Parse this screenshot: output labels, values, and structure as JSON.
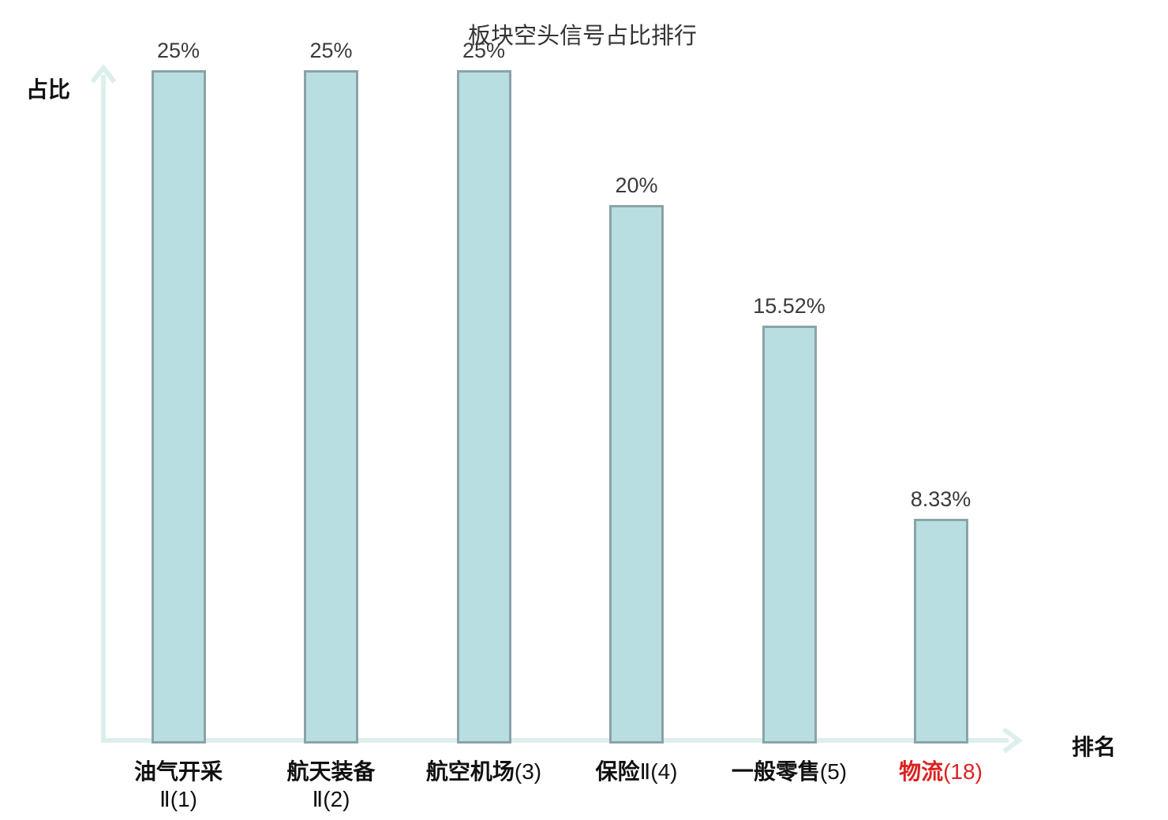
{
  "title": "板块空头信号占比排行",
  "colors": {
    "bar_fill": "#b9dee1",
    "bar_border": "#8ba3a7",
    "axis": "#dcefec",
    "value_text": "#3a3a3a",
    "label_text": "#111111",
    "title_text": "#333333",
    "highlight": "#dd2222"
  },
  "chart_data": {
    "type": "bar",
    "title": "板块空头信号占比排行",
    "xlabel": "排名",
    "ylabel": "占比",
    "ylim": [
      0,
      25
    ],
    "grid": false,
    "legend": null,
    "categories": [
      "油气开采Ⅱ(1)",
      "航天装备Ⅱ(2)",
      "航空机场(3)",
      "保险Ⅱ(4)",
      "一般零售(5)",
      "物流(18)"
    ],
    "values": [
      25,
      25,
      25,
      20,
      15.52,
      8.33
    ],
    "value_labels": [
      "25%",
      "25%",
      "25%",
      "20%",
      "15.52%",
      "8.33%"
    ],
    "bars": [
      {
        "name": "油气开采",
        "rank_suffix": "Ⅱ(1)",
        "two_line": true,
        "value": 25,
        "value_label": "25%",
        "highlight": false
      },
      {
        "name": "航天装备",
        "rank_suffix": "Ⅱ(2)",
        "two_line": true,
        "value": 25,
        "value_label": "25%",
        "highlight": false
      },
      {
        "name": "航空机场",
        "rank_suffix": "(3)",
        "two_line": false,
        "value": 25,
        "value_label": "25%",
        "highlight": false
      },
      {
        "name": "保险",
        "rank_suffix": "Ⅱ(4)",
        "two_line": false,
        "value": 20,
        "value_label": "20%",
        "highlight": false
      },
      {
        "name": "一般零售",
        "rank_suffix": "(5)",
        "two_line": false,
        "value": 15.52,
        "value_label": "15.52%",
        "highlight": false
      },
      {
        "name": "物流",
        "rank_suffix": "(18)",
        "two_line": false,
        "value": 8.33,
        "value_label": "8.33%",
        "highlight": true
      }
    ]
  }
}
